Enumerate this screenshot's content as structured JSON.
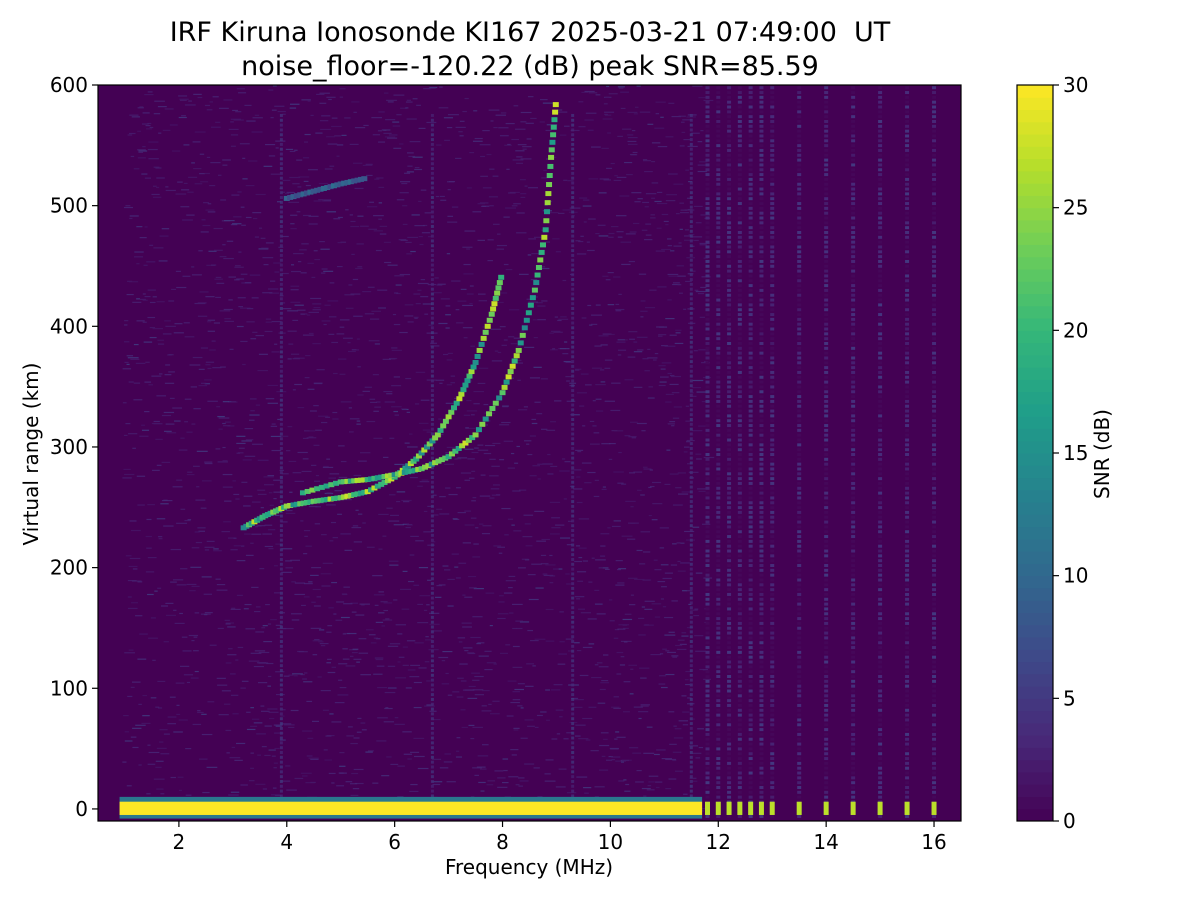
{
  "chart_data": {
    "type": "heatmap",
    "title": "IRF Kiruna Ionosonde KI167 2025-03-21 07:49:00  UT",
    "subtitle": "noise_floor=-120.22 (dB) peak SNR=85.59",
    "xlabel": "Frequency (MHz)",
    "ylabel": "Virtual range (km)",
    "xlim": [
      0.5,
      16.5
    ],
    "ylim": [
      -10,
      600
    ],
    "xticks": [
      2,
      4,
      6,
      8,
      10,
      12,
      14,
      16
    ],
    "yticks": [
      0,
      100,
      200,
      300,
      400,
      500,
      600
    ],
    "colorbar": {
      "label": "SNR (dB)",
      "range": [
        0,
        30
      ],
      "ticks": [
        0,
        5,
        10,
        15,
        20,
        25,
        30
      ],
      "colormap": "viridis"
    },
    "echo_traces": [
      {
        "name_hint": "O-mode F trace",
        "points": [
          [
            3.2,
            233
          ],
          [
            3.6,
            243
          ],
          [
            4.0,
            251
          ],
          [
            4.5,
            255
          ],
          [
            5.0,
            258
          ],
          [
            5.5,
            263
          ],
          [
            6.0,
            275
          ],
          [
            6.4,
            290
          ],
          [
            6.8,
            310
          ],
          [
            7.2,
            340
          ],
          [
            7.5,
            370
          ],
          [
            7.8,
            410
          ],
          [
            8.0,
            445
          ]
        ]
      },
      {
        "name_hint": "X-mode F trace",
        "points": [
          [
            4.3,
            262
          ],
          [
            5.0,
            271
          ],
          [
            5.5,
            273
          ],
          [
            6.0,
            277
          ],
          [
            6.5,
            282
          ],
          [
            7.0,
            292
          ],
          [
            7.5,
            310
          ],
          [
            8.0,
            345
          ],
          [
            8.3,
            380
          ],
          [
            8.6,
            430
          ],
          [
            8.8,
            480
          ],
          [
            8.9,
            540
          ],
          [
            9.0,
            590
          ]
        ]
      },
      {
        "name_hint": "second-hop echo",
        "points": [
          [
            4.0,
            506
          ],
          [
            4.5,
            512
          ],
          [
            5.0,
            518
          ],
          [
            5.5,
            523
          ]
        ]
      }
    ],
    "ground_echo": {
      "range_km": 0,
      "freq_span": [
        0.9,
        11.7
      ],
      "snr_db": 30
    },
    "pulse_lines_mhz": [
      11.8,
      12.0,
      12.2,
      12.4,
      12.6,
      12.8,
      13.0,
      13.5,
      14.0,
      14.5,
      15.0,
      15.5,
      16.0
    ]
  },
  "colors": {
    "background": "#440154",
    "viridis": [
      "#440154",
      "#482878",
      "#3e4989",
      "#31688e",
      "#26828e",
      "#1f9e89",
      "#35b779",
      "#6ece58",
      "#b5de2b",
      "#fde725"
    ]
  }
}
